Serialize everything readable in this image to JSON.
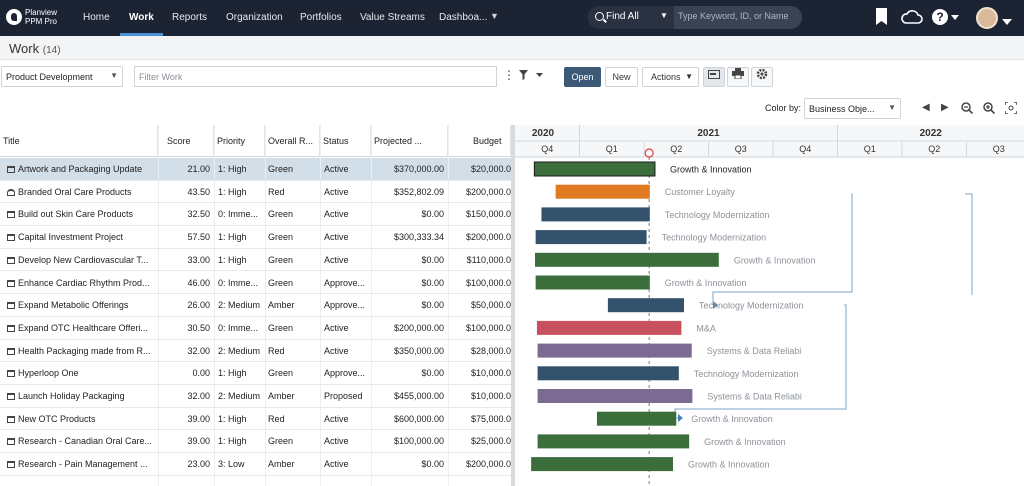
{
  "nav": {
    "logo_line1": "Planview",
    "logo_line2": "PPM Pro",
    "items": [
      "Home",
      "Work",
      "Reports",
      "Organization",
      "Portfolios",
      "Value Streams",
      "Dashboa..."
    ],
    "search_scope": "Find All",
    "search_placeholder": "Type Keyword, ID, or Name"
  },
  "page": {
    "title": "Work",
    "count": "(14)"
  },
  "toolbar": {
    "view_select": "Product Development",
    "filter_placeholder": "Filter Work",
    "open_label": "Open",
    "new_label": "New",
    "actions_label": "Actions"
  },
  "gantt_controls": {
    "color_by_label": "Color by:",
    "color_by_value": "Business Obje..."
  },
  "grid": {
    "columns": [
      "Title",
      "Score",
      "Priority",
      "Overall R...",
      "Status",
      "Projected ...",
      "Budget"
    ],
    "rows": [
      {
        "title": "Artwork and Packaging Update",
        "score": "21.00",
        "priority": "1: High",
        "overall": "Green",
        "status": "Active",
        "projected": "$370,000.00",
        "budget": "$20,000.0"
      },
      {
        "title": "Branded Oral Care Products",
        "score": "43.50",
        "priority": "1: High",
        "overall": "Red",
        "status": "Active",
        "projected": "$352,802.09",
        "budget": "$200,000.0"
      },
      {
        "title": "Build out Skin Care Products",
        "score": "32.50",
        "priority": "0: Imme...",
        "overall": "Green",
        "status": "Active",
        "projected": "$0.00",
        "budget": "$150,000.0"
      },
      {
        "title": "Capital Investment Project",
        "score": "57.50",
        "priority": "1: High",
        "overall": "Green",
        "status": "Active",
        "projected": "$300,333.34",
        "budget": "$200,000.0"
      },
      {
        "title": "Develop New Cardiovascular T...",
        "score": "33.00",
        "priority": "1: High",
        "overall": "Green",
        "status": "Active",
        "projected": "$0.00",
        "budget": "$110,000.0"
      },
      {
        "title": "Enhance Cardiac Rhythm Prod...",
        "score": "46.00",
        "priority": "0: Imme...",
        "overall": "Green",
        "status": "Approve...",
        "projected": "$0.00",
        "budget": "$100,000.0"
      },
      {
        "title": "Expand Metabolic Offerings",
        "score": "26.00",
        "priority": "2: Medium",
        "overall": "Amber",
        "status": "Approve...",
        "projected": "$0.00",
        "budget": "$50,000.0"
      },
      {
        "title": "Expand OTC Healthcare Offeri...",
        "score": "30.50",
        "priority": "0: Imme...",
        "overall": "Green",
        "status": "Active",
        "projected": "$200,000.00",
        "budget": "$100,000.0"
      },
      {
        "title": "Health Packaging made from R...",
        "score": "32.00",
        "priority": "2: Medium",
        "overall": "Red",
        "status": "Active",
        "projected": "$350,000.00",
        "budget": "$28,000.0"
      },
      {
        "title": "Hyperloop One",
        "score": "0.00",
        "priority": "1: High",
        "overall": "Green",
        "status": "Approve...",
        "projected": "$0.00",
        "budget": "$10,000.0"
      },
      {
        "title": "Launch Holiday Packaging",
        "score": "32.00",
        "priority": "2: Medium",
        "overall": "Amber",
        "status": "Proposed",
        "projected": "$455,000.00",
        "budget": "$10,000.0"
      },
      {
        "title": "New OTC Products",
        "score": "39.00",
        "priority": "1: High",
        "overall": "Red",
        "status": "Active",
        "projected": "$600,000.00",
        "budget": "$75,000.0"
      },
      {
        "title": "Research - Canadian Oral Care...",
        "score": "39.00",
        "priority": "1: High",
        "overall": "Green",
        "status": "Active",
        "projected": "$100,000.00",
        "budget": "$25,000.0"
      },
      {
        "title": "Research - Pain Management ...",
        "score": "23.00",
        "priority": "3: Low",
        "overall": "Amber",
        "status": "Active",
        "projected": "$0.00",
        "budget": "$200,000.0"
      }
    ]
  },
  "gantt": {
    "years": [
      "2020",
      "2021",
      "2022"
    ],
    "quarters": [
      "Q4",
      "Q1",
      "Q2",
      "Q3",
      "Q4",
      "Q1",
      "Q2",
      "Q3"
    ],
    "colors": {
      "green": "#3c6e3c",
      "orange": "#e07b22",
      "navy": "#34526c",
      "red": "#c9505e",
      "purple": "#7b6a92"
    },
    "bars": [
      {
        "label": "Growth & Innovation",
        "color": "green",
        "start": 0.3,
        "end": 2.17,
        "selected": true
      },
      {
        "label": "Customer Loyalty",
        "color": "orange",
        "start": 0.63,
        "end": 2.09
      },
      {
        "label": "Technology Modernization",
        "color": "navy",
        "start": 0.41,
        "end": 2.09
      },
      {
        "label": "Technology Modernization",
        "color": "navy",
        "start": 0.32,
        "end": 2.04
      },
      {
        "label": "Growth & Innovation",
        "color": "green",
        "start": 0.31,
        "end": 3.16
      },
      {
        "label": "Growth & Innovation",
        "color": "green",
        "start": 0.32,
        "end": 2.09
      },
      {
        "label": "Technology Modernization",
        "color": "navy",
        "start": 1.44,
        "end": 2.62
      },
      {
        "label": "M&A",
        "color": "red",
        "start": 0.34,
        "end": 2.58
      },
      {
        "label": "Systems & Data Reliabi",
        "color": "purple",
        "start": 0.35,
        "end": 2.74
      },
      {
        "label": "Technology Modernization",
        "color": "navy",
        "start": 0.35,
        "end": 2.54
      },
      {
        "label": "Systems & Data Reliabi",
        "color": "purple",
        "start": 0.35,
        "end": 2.75
      },
      {
        "label": "Growth & Innovation",
        "color": "green",
        "start": 1.27,
        "end": 2.5
      },
      {
        "label": "Growth & Innovation",
        "color": "green",
        "start": 0.35,
        "end": 2.7
      },
      {
        "label": "Growth & Innovation",
        "color": "green",
        "start": 0.25,
        "end": 2.45
      }
    ]
  }
}
